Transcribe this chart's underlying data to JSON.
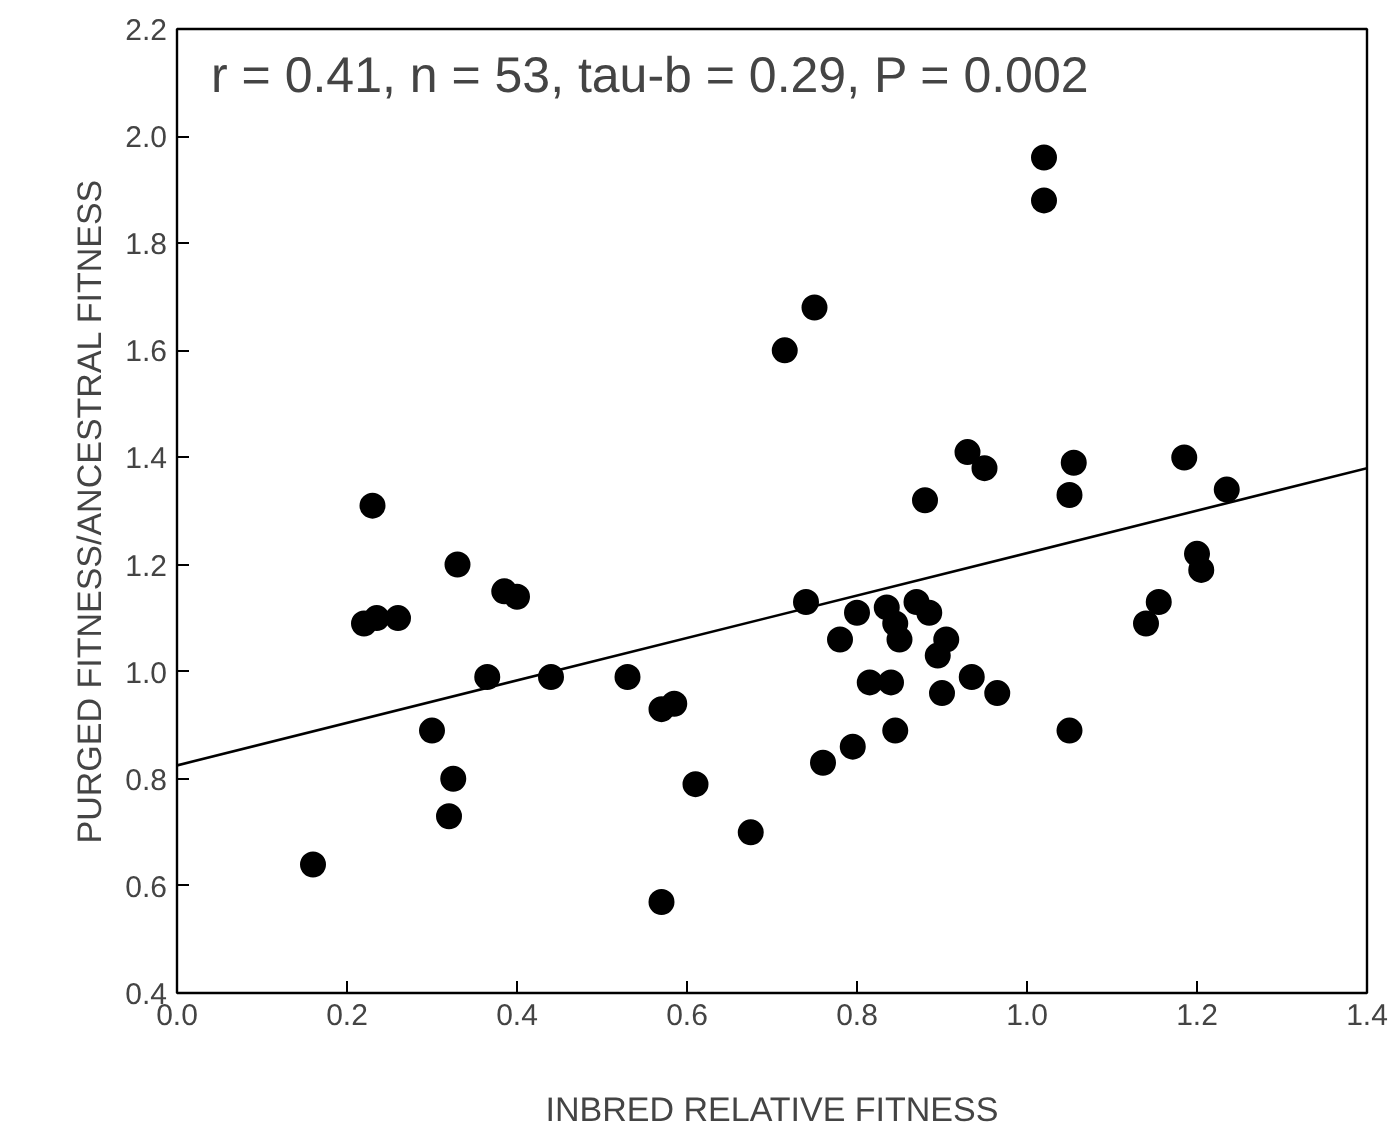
{
  "chart_data": {
    "type": "scatter",
    "xlabel": "INBRED RELATIVE FITNESS",
    "ylabel": "PURGED FITNESS/ANCESTRAL FITNESS",
    "annotations": [
      "r = 0.41, n = 53, tau-b = 0.29, P = 0.002"
    ],
    "xlim": [
      0,
      1.4
    ],
    "ylim": [
      0.4,
      2.2
    ],
    "xticks": [
      {
        "value": 0,
        "label": "0.0"
      },
      0.2,
      0.4,
      0.6,
      0.8,
      {
        "value": 1,
        "label": "1.0"
      },
      1.2,
      1.4
    ],
    "yticks": [
      0.4,
      0.6,
      0.8,
      {
        "value": 1,
        "label": "1.0"
      },
      1.2,
      1.4,
      1.6,
      1.8,
      {
        "value": 2,
        "label": "2.0"
      },
      2.2
    ],
    "series": [
      {
        "color": "#000000",
        "marker": "circle",
        "x": [
          0.16,
          0.22,
          0.23,
          0.235,
          0.26,
          0.3,
          0.32,
          0.325,
          0.33,
          0.365,
          0.385,
          0.4,
          0.44,
          0.53,
          0.57,
          0.585,
          0.57,
          0.61,
          0.675,
          0.715,
          0.74,
          0.75,
          0.76,
          0.78,
          0.795,
          0.8,
          0.815,
          0.835,
          0.84,
          0.845,
          0.845,
          0.85,
          0.87,
          0.88,
          0.885,
          0.895,
          0.9,
          0.905,
          0.93,
          0.935,
          0.95,
          0.965,
          1.02,
          1.02,
          1.05,
          1.055,
          1.05,
          1.14,
          1.155,
          1.185,
          1.2,
          1.205,
          1.235
        ],
        "values": [
          0.64,
          1.09,
          1.31,
          1.1,
          1.1,
          0.89,
          0.73,
          0.8,
          1.2,
          0.99,
          1.15,
          1.14,
          0.99,
          0.99,
          0.93,
          0.94,
          0.57,
          0.79,
          0.7,
          1.6,
          1.13,
          1.68,
          0.83,
          1.06,
          0.86,
          1.11,
          0.98,
          1.12,
          0.98,
          1.09,
          0.89,
          1.06,
          1.13,
          1.32,
          1.11,
          1.03,
          0.96,
          1.06,
          1.41,
          0.99,
          1.38,
          0.96,
          1.96,
          1.88,
          1.33,
          1.39,
          0.89,
          1.09,
          1.13,
          1.4,
          1.22,
          1.19,
          1.34
        ]
      },
      {
        "type": "line",
        "color": "#000000",
        "x": [
          0,
          1.4
        ],
        "values": [
          0.825,
          1.38
        ]
      }
    ]
  }
}
